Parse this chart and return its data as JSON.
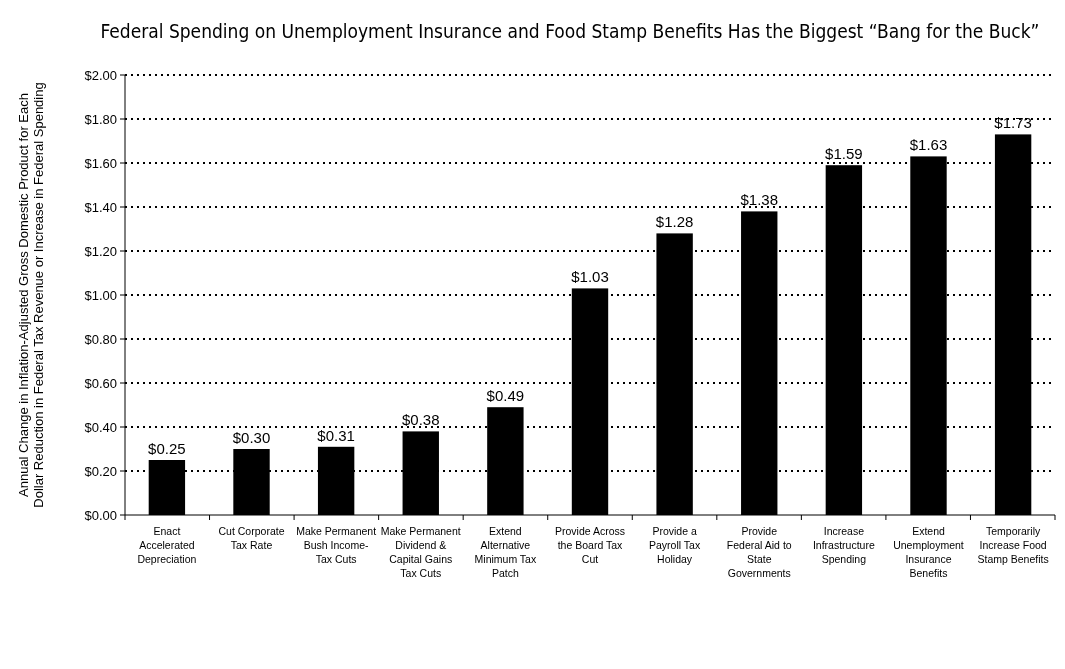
{
  "chart_data": {
    "type": "bar",
    "title": "Federal Spending on Unemployment Insurance and Food Stamp Benefits Has the Biggest “Bang for the Buck”",
    "ylabel": "Annual Change in Inflation-Adjusted Gross Domestic Product for Each\nDollar Reduction in Federal Tax Revenue or Increase in Federal Spending",
    "categories": [
      "Enact Accelerated Depreciation",
      "Cut Corporate Tax Rate",
      "Make Permanent Bush Income-Tax Cuts",
      "Make Permanent Dividend & Capital Gains Tax Cuts",
      "Extend Alternative Minimum Tax Patch",
      "Provide Across the Board Tax Cut",
      "Provide a Payroll Tax Holiday",
      "Provide Federal Aid to State Governments",
      "Increase Infrastructure Spending",
      "Extend Unemployment Insurance Benefits",
      "Temporarily Increase Food Stamp Benefits"
    ],
    "values": [
      0.25,
      0.3,
      0.31,
      0.38,
      0.49,
      1.03,
      1.28,
      1.38,
      1.59,
      1.63,
      1.73
    ],
    "value_labels": [
      "$0.25",
      "$0.30",
      "$0.31",
      "$0.38",
      "$0.49",
      "$1.03",
      "$1.28",
      "$1.38",
      "$1.59",
      "$1.63",
      "$1.73"
    ],
    "color": "#000000",
    "ylim": [
      0,
      2
    ],
    "yticks": [
      {
        "value": 0,
        "label": "$0.00"
      },
      {
        "value": 0.2,
        "label": "$0.20"
      },
      {
        "value": 0.4,
        "label": "$0.40"
      },
      {
        "value": 0.6,
        "label": "$0.60"
      },
      {
        "value": 0.8,
        "label": "$0.80"
      },
      {
        "value": 1,
        "label": "$1.00"
      },
      {
        "value": 1.2,
        "label": "$1.20"
      },
      {
        "value": 1.4,
        "label": "$1.40"
      },
      {
        "value": 1.6,
        "label": "$1.60"
      },
      {
        "value": 1.8,
        "label": "$1.80"
      },
      {
        "value": 2,
        "label": "$2.00"
      }
    ],
    "grid": "y"
  }
}
